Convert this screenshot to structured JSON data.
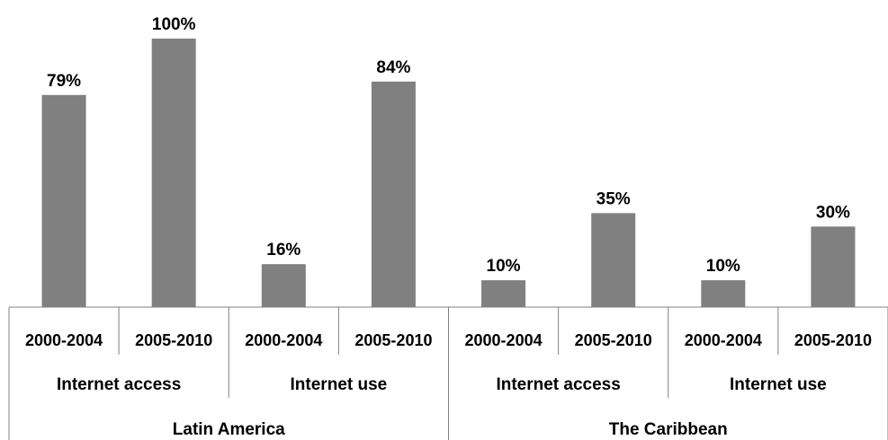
{
  "chart_data": {
    "type": "bar",
    "title": "",
    "xlabel": "",
    "ylabel": "",
    "ylim": [
      0,
      100
    ],
    "grid": false,
    "legend": "none",
    "bar_color": "#808080",
    "categories": [
      "2000-2004",
      "2005-2010",
      "2000-2004",
      "2005-2010",
      "2000-2004",
      "2005-2010",
      "2000-2004",
      "2005-2010"
    ],
    "values": [
      79,
      100,
      16,
      84,
      10,
      35,
      10,
      30
    ],
    "value_labels": [
      "79%",
      "100%",
      "16%",
      "84%",
      "10%",
      "35%",
      "10%",
      "30%"
    ],
    "groups_level1": [
      "Internet access",
      "Internet use",
      "Internet access",
      "Internet use"
    ],
    "groups_level2": [
      "Latin America",
      "The Caribbean"
    ]
  }
}
